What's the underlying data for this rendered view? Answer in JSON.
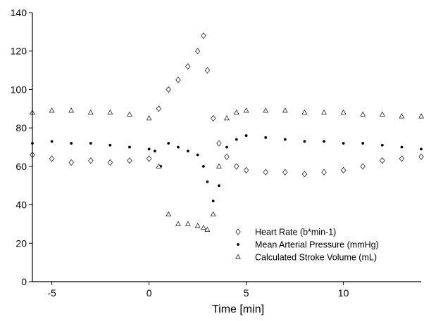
{
  "chart_data": {
    "type": "scatter",
    "title": "",
    "xlabel": "Time [min]",
    "ylabel": "",
    "xlim": [
      -6,
      14
    ],
    "ylim": [
      0,
      140
    ],
    "xticks": [
      -5,
      0,
      5,
      10
    ],
    "yticks": [
      0,
      20,
      40,
      60,
      80,
      100,
      120,
      140
    ],
    "grid": false,
    "legend_position": "bottom-right",
    "series": [
      {
        "name": "Heart Rate (b*min-1)",
        "marker": "diamond-open",
        "x": [
          -6,
          -5,
          -4,
          -3,
          -2,
          -1,
          0,
          0.5,
          1,
          1.5,
          2,
          2.5,
          2.8,
          3,
          3.3,
          3.6,
          4,
          4.5,
          5,
          6,
          7,
          8,
          9,
          10,
          11,
          12,
          13,
          14
        ],
        "values": [
          66,
          64,
          62,
          63,
          62,
          63,
          64,
          90,
          100,
          105,
          112,
          120,
          128,
          110,
          85,
          72,
          65,
          60,
          58,
          57,
          57,
          56,
          57,
          58,
          60,
          63,
          64,
          65
        ]
      },
      {
        "name": "Mean Arterial Pressure (mmHg)",
        "marker": "dot-filled",
        "x": [
          -6,
          -5,
          -4,
          -3,
          -2,
          -1,
          0,
          0.3,
          0.6,
          1,
          1.5,
          2,
          2.5,
          2.8,
          3,
          3.3,
          3.6,
          4,
          4.5,
          5,
          6,
          7,
          8,
          9,
          10,
          11,
          12,
          13,
          14
        ],
        "values": [
          72,
          73,
          72,
          72,
          71,
          70,
          69,
          68,
          60,
          72,
          70,
          68,
          66,
          60,
          52,
          42,
          50,
          70,
          74,
          76,
          75,
          74,
          73,
          73,
          72,
          72,
          71,
          70,
          69
        ]
      },
      {
        "name": "Calculated Stroke Volume (mL)",
        "marker": "triangle-open",
        "x": [
          -6,
          -5,
          -4,
          -3,
          -2,
          -1,
          0,
          0.5,
          1,
          1.5,
          2,
          2.5,
          2.8,
          3,
          3.3,
          3.6,
          4,
          4.5,
          5,
          6,
          7,
          8,
          9,
          10,
          11,
          12,
          13,
          14
        ],
        "values": [
          88,
          89,
          89,
          88,
          88,
          87,
          85,
          60,
          35,
          30,
          30,
          29,
          28,
          27,
          35,
          60,
          85,
          88,
          89,
          89,
          89,
          88,
          88,
          88,
          87,
          87,
          86,
          86
        ]
      }
    ]
  }
}
